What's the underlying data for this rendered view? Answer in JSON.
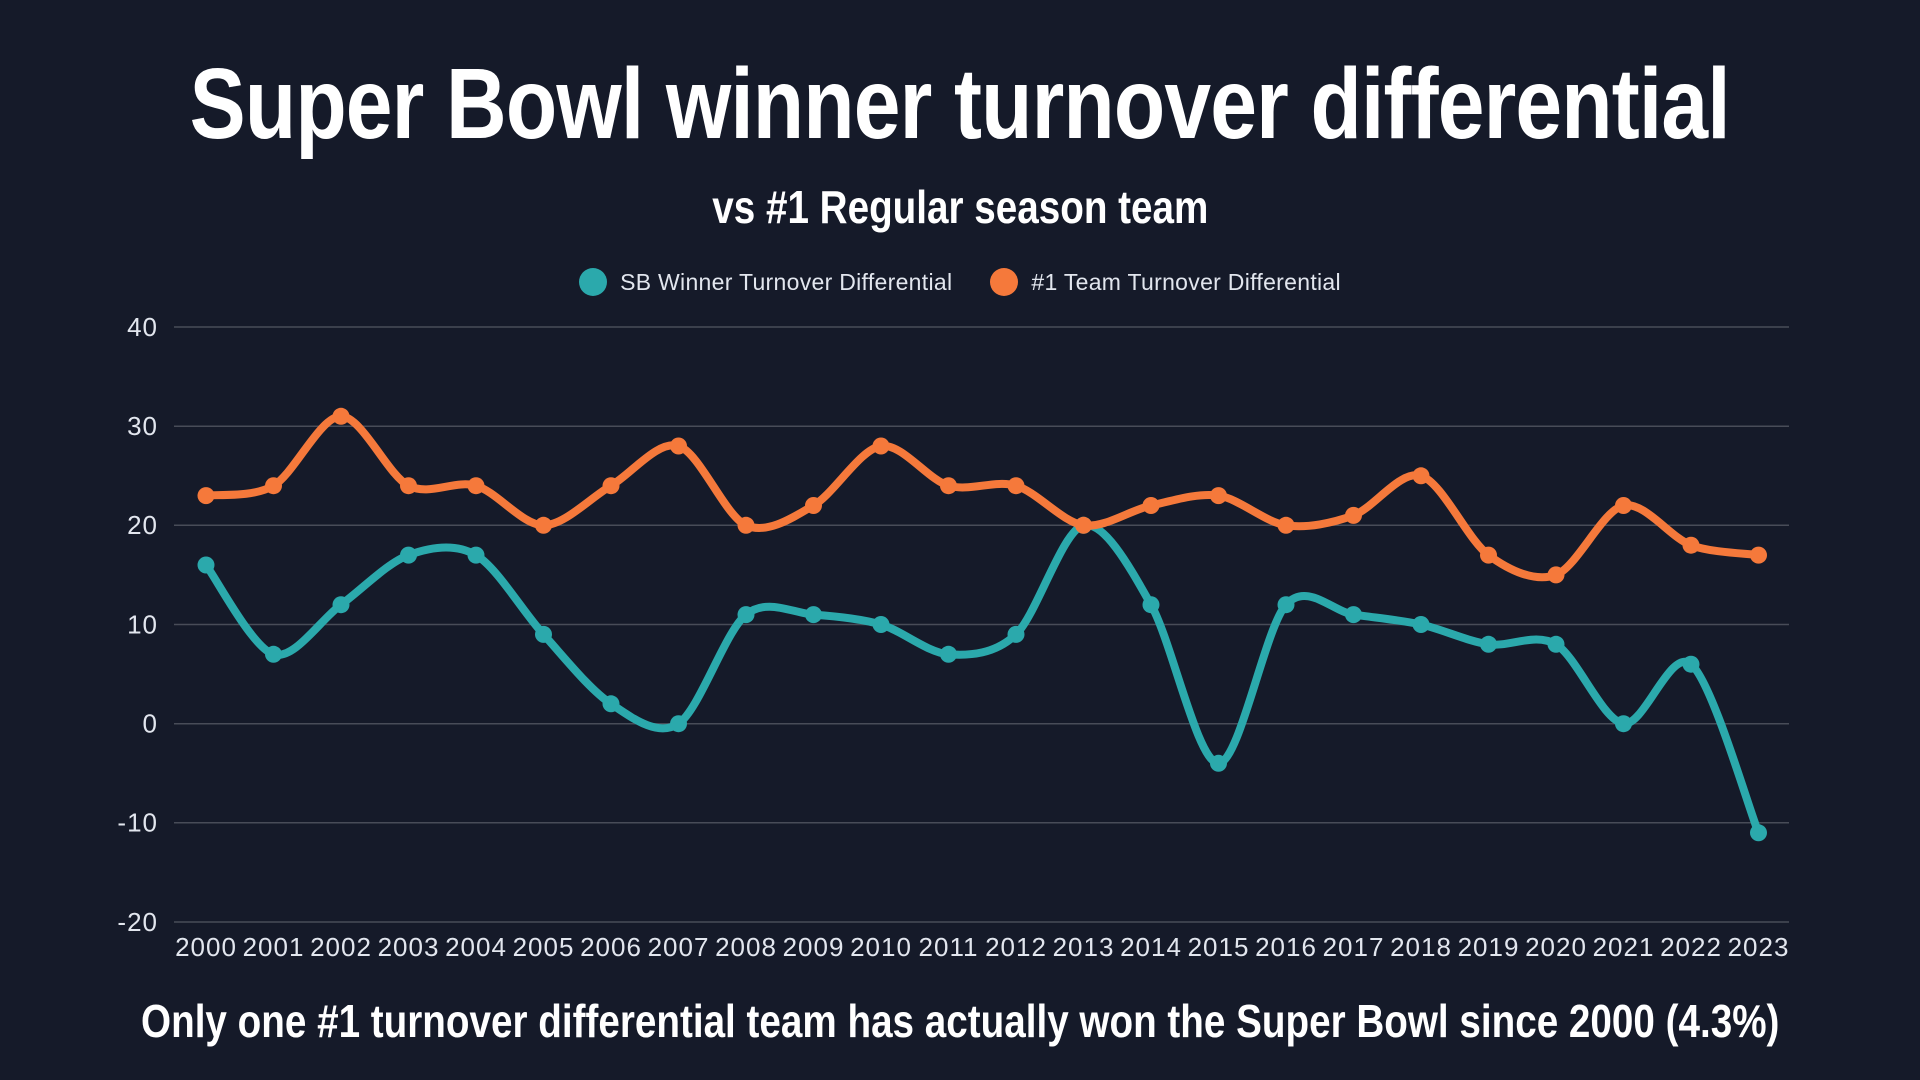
{
  "title": "Super Bowl winner turnover differential",
  "subtitle": "vs #1 Regular season team",
  "note": "Only one #1 turnover differential team has actually won the Super Bowl since 2000 (4.3%)",
  "colors": {
    "background": "#151A29",
    "teal": "#2BA9AC",
    "orange": "#F5793B",
    "grid": "rgba(255,255,255,0.22)",
    "tick_text": "#E2E6EE",
    "heading_text": "#FFFFFF"
  },
  "legend": {
    "items": [
      {
        "label": "SB Winner Turnover Differential",
        "color": "#2BA9AC"
      },
      {
        "label": "#1 Team Turnover Differential",
        "color": "#F5793B"
      }
    ]
  },
  "chart_data": {
    "type": "line",
    "title": "Super Bowl winner turnover differential",
    "subtitle": "vs #1 Regular season team",
    "x": [
      2000,
      2001,
      2002,
      2003,
      2004,
      2005,
      2006,
      2007,
      2008,
      2009,
      2010,
      2011,
      2012,
      2013,
      2014,
      2015,
      2016,
      2017,
      2018,
      2019,
      2020,
      2021,
      2022,
      2023
    ],
    "series": [
      {
        "name": "SB Winner Turnover Differential",
        "color": "#2BA9AC",
        "values": [
          16,
          7,
          12,
          17,
          17,
          9,
          2,
          0,
          11,
          11,
          10,
          7,
          9,
          20,
          12,
          -4,
          12,
          11,
          10,
          8,
          8,
          0,
          6,
          -11
        ]
      },
      {
        "name": "#1 Team Turnover Differential",
        "color": "#F5793B",
        "values": [
          23,
          24,
          31,
          24,
          24,
          20,
          24,
          28,
          20,
          22,
          28,
          24,
          24,
          20,
          22,
          23,
          20,
          21,
          25,
          17,
          15,
          22,
          18,
          17
        ]
      }
    ],
    "ylim": [
      -20,
      40
    ],
    "yticks": [
      40,
      30,
      20,
      10,
      0,
      -10,
      -20
    ],
    "xlabel": "",
    "ylabel": "",
    "grid": "horizontal-only",
    "legend_position": "top-center",
    "line_style": "smooth-with-point-markers",
    "annotation": "Only one #1 turnover differential team has actually won the Super Bowl since 2000 (4.3%)"
  }
}
